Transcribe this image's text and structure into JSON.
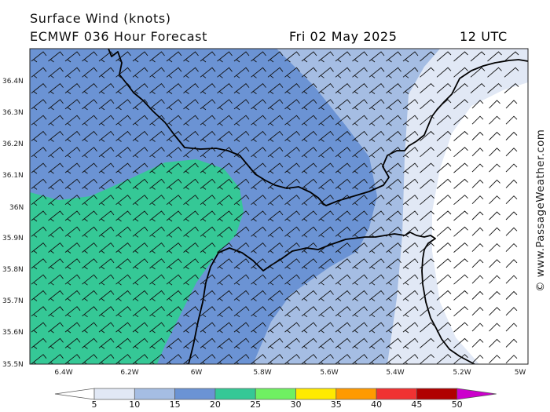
{
  "header": {
    "title_line1": "Surface Wind (knots)",
    "title_line2": "ECMWF 036 Hour Forecast",
    "date": "Fri 02 May 2025",
    "time": "12 UTC"
  },
  "map": {
    "latitude_labels": [
      "36.4N",
      "36.3N",
      "36.2N",
      "36.1N",
      "36N",
      "35.9N",
      "35.8N",
      "35.7N",
      "35.6N",
      "35.5N"
    ],
    "longitude_labels": [
      "6.4W",
      "6.2W",
      "6W",
      "5.8W",
      "5.6W",
      "5.4W",
      "5.2W",
      "5W"
    ],
    "credit": "© www.PassageWeather.com"
  },
  "legend": {
    "ticks": [
      "5",
      "10",
      "15",
      "20",
      "25",
      "30",
      "35",
      "40",
      "45",
      "50"
    ],
    "colors": [
      "#ffffff",
      "#e1e8f5",
      "#a5bde3",
      "#6b93d4",
      "#35c896",
      "#6ff062",
      "#ffea00",
      "#ff9a00",
      "#f03232",
      "#b00000",
      "#cc00cc"
    ]
  }
}
